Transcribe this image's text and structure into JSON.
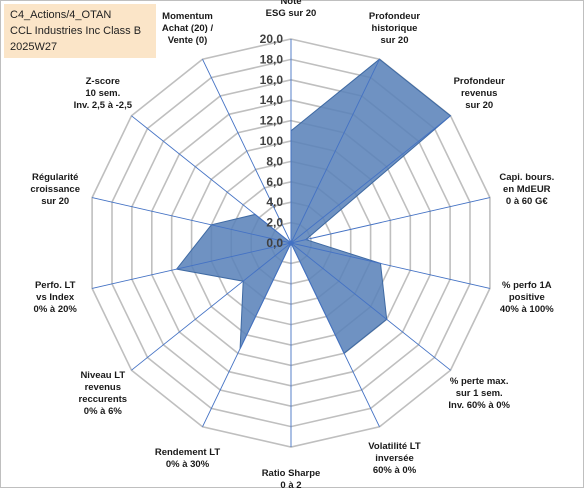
{
  "title_box": {
    "line1": "C4_Actions/4_OTAN",
    "line2": "CCL Industries Inc Class B",
    "line3": "2025W27"
  },
  "chart_data": {
    "type": "radar",
    "rlim": [
      0,
      20
    ],
    "ticks": [
      "0,0",
      "2,0",
      "4,0",
      "6,0",
      "8,0",
      "10,0",
      "12,0",
      "14,0",
      "16,0",
      "18,0",
      "20,0"
    ],
    "grid": true,
    "fill_color": "#5b83b9",
    "edge_color": "#3f6aa3",
    "grid_color": "#bfbfbf",
    "spoke_color": "#4472c4",
    "axes": [
      {
        "label": [
          "Note",
          "ESG sur 20"
        ],
        "value": 11.0
      },
      {
        "label": [
          "Profondeur",
          "historique",
          "sur 20"
        ],
        "value": 20.0
      },
      {
        "label": [
          "Profondeur",
          "revenus",
          "sur 20"
        ],
        "value": 20.0
      },
      {
        "label": [
          "Capi. bours.",
          "en MdEUR",
          "0 à 60 G€"
        ],
        "value": 1.5
      },
      {
        "label": [
          "% perfo 1A",
          "positive",
          "40% à 100%"
        ],
        "value": 9.0
      },
      {
        "label": [
          "% perte max.",
          "sur 1 sem.",
          "Inv. 60% à 0%"
        ],
        "value": 12.0
      },
      {
        "label": [
          "Volatilité LT",
          "inversée",
          "60% à 0%"
        ],
        "value": 12.0
      },
      {
        "label": [
          "Ratio Sharpe",
          "0 à 2"
        ],
        "value": 0.0
      },
      {
        "label": [
          "Rendement LT",
          "0% à 30%"
        ],
        "value": 11.5
      },
      {
        "label": [
          "Niveau LT",
          "revenus",
          "reccurents",
          "0% à 6%"
        ],
        "value": 6.0
      },
      {
        "label": [
          "Perfo. LT",
          "vs Index",
          "0% à 20%"
        ],
        "value": 11.5
      },
      {
        "label": [
          "Régularité",
          "croissance",
          "sur 20"
        ],
        "value": 8.0
      },
      {
        "label": [
          "Z-score",
          "10 sem.",
          "Inv. 2,5 à -2,5"
        ],
        "value": 4.5
      },
      {
        "label": [
          "Momentum",
          "Achat (20) /",
          "Vente (0)"
        ],
        "value": 0.0
      }
    ]
  }
}
